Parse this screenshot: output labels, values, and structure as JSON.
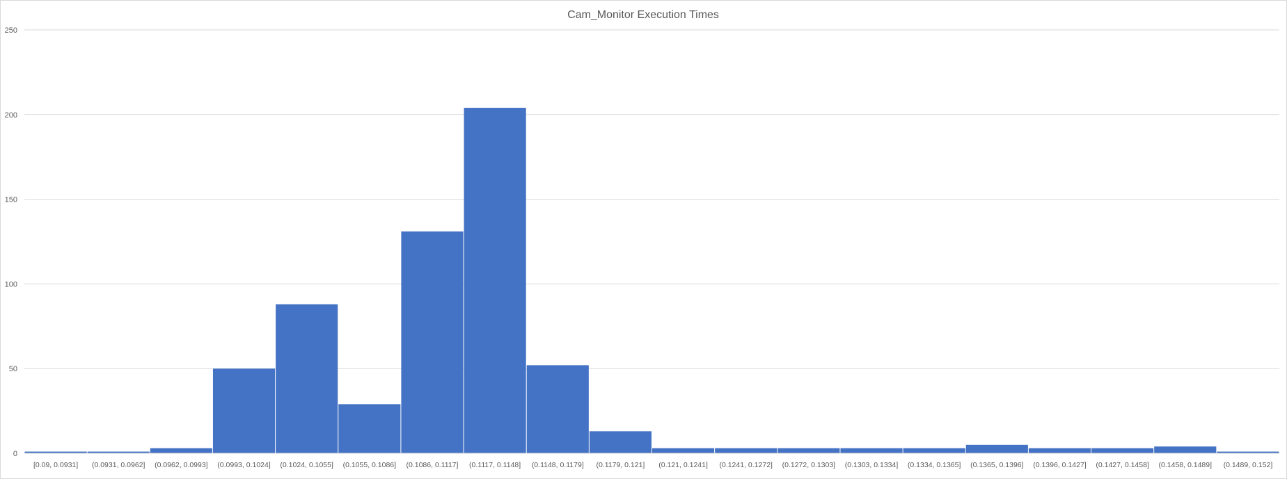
{
  "chart_data": {
    "type": "bar",
    "title": "Cam_Monitor Execution Times",
    "xlabel": "",
    "ylabel": "",
    "ylim": [
      0,
      250
    ],
    "yticks": [
      0,
      50,
      100,
      150,
      200,
      250
    ],
    "grid": true,
    "legend": "none",
    "bar_color": "#4472C4",
    "gridline_color": "#d9d9d9",
    "categories": [
      "[0.09, 0.0931]",
      "(0.0931, 0.0962]",
      "(0.0962, 0.0993]",
      "(0.0993, 0.1024]",
      "(0.1024, 0.1055]",
      "(0.1055, 0.1086]",
      "(0.1086, 0.1117]",
      "(0.1117, 0.1148]",
      "(0.1148, 0.1179]",
      "(0.1179, 0.121]",
      "(0.121, 0.1241]",
      "(0.1241, 0.1272]",
      "(0.1272, 0.1303]",
      "(0.1303, 0.1334]",
      "(0.1334, 0.1365]",
      "(0.1365, 0.1396]",
      "(0.1396, 0.1427]",
      "(0.1427, 0.1458]",
      "(0.1458, 0.1489]",
      "(0.1489, 0.152]"
    ],
    "values": [
      1,
      1,
      3,
      50,
      88,
      29,
      131,
      204,
      52,
      13,
      3,
      3,
      3,
      3,
      3,
      5,
      3,
      3,
      4,
      1
    ]
  }
}
